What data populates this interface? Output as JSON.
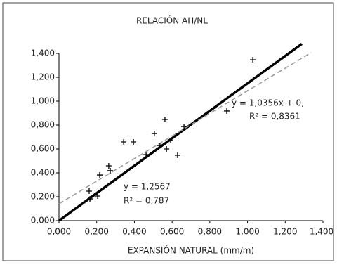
{
  "chart_data": {
    "type": "scatter",
    "title": "RELACIÓN AH/NL",
    "x_label": "EXPANSIÓN NATURAL (mm/m)",
    "xlim": [
      0,
      1.4
    ],
    "ylim": [
      0,
      1.4
    ],
    "xticks": [
      {
        "value": 0,
        "label": "0,000"
      },
      {
        "value": 0.2,
        "label": "0,200"
      },
      {
        "value": 0.4,
        "label": "0,400"
      },
      {
        "value": 0.6,
        "label": "0,600"
      },
      {
        "value": 0.8,
        "label": "0,800"
      },
      {
        "value": 1.0,
        "label": "1,000"
      },
      {
        "value": 1.2,
        "label": "1,200"
      },
      {
        "value": 1.4,
        "label": "1,400"
      }
    ],
    "yticks": [
      {
        "value": 0,
        "label": "0,000"
      },
      {
        "value": 0.2,
        "label": "0,200"
      },
      {
        "value": 0.4,
        "label": "0,400"
      },
      {
        "value": 0.6,
        "label": "0,600"
      },
      {
        "value": 0.8,
        "label": "0,800"
      },
      {
        "value": 1.0,
        "label": "1,000"
      },
      {
        "value": 1.2,
        "label": "1,200"
      },
      {
        "value": 1.4,
        "label": "1,400"
      }
    ],
    "series": [
      {
        "color": "#000000",
        "x": [
          0.16,
          0.164,
          0.205,
          0.216,
          0.264,
          0.272,
          0.343,
          0.395,
          0.462,
          0.506,
          0.536,
          0.562,
          0.57,
          0.592,
          0.629,
          0.663,
          0.89,
          1.028
        ],
        "values": [
          0.247,
          0.182,
          0.206,
          0.382,
          0.459,
          0.418,
          0.659,
          0.659,
          0.553,
          0.729,
          0.629,
          0.847,
          0.6,
          0.671,
          0.547,
          0.788,
          0.918,
          1.347
        ]
      }
    ],
    "lines": [
      {
        "color": "#000000",
        "x": [
          0,
          1.288
        ],
        "values": [
          0,
          1.48
        ]
      },
      {
        "color": "#999999",
        "dashed": true,
        "x": [
          0,
          1.337
        ],
        "values": [
          0.141,
          1.406
        ]
      }
    ],
    "annotations": [
      "y = 1,0356x + 0,",
      "R² = 0,8361",
      "y = 1,2567",
      "R² = 0,787"
    ]
  }
}
